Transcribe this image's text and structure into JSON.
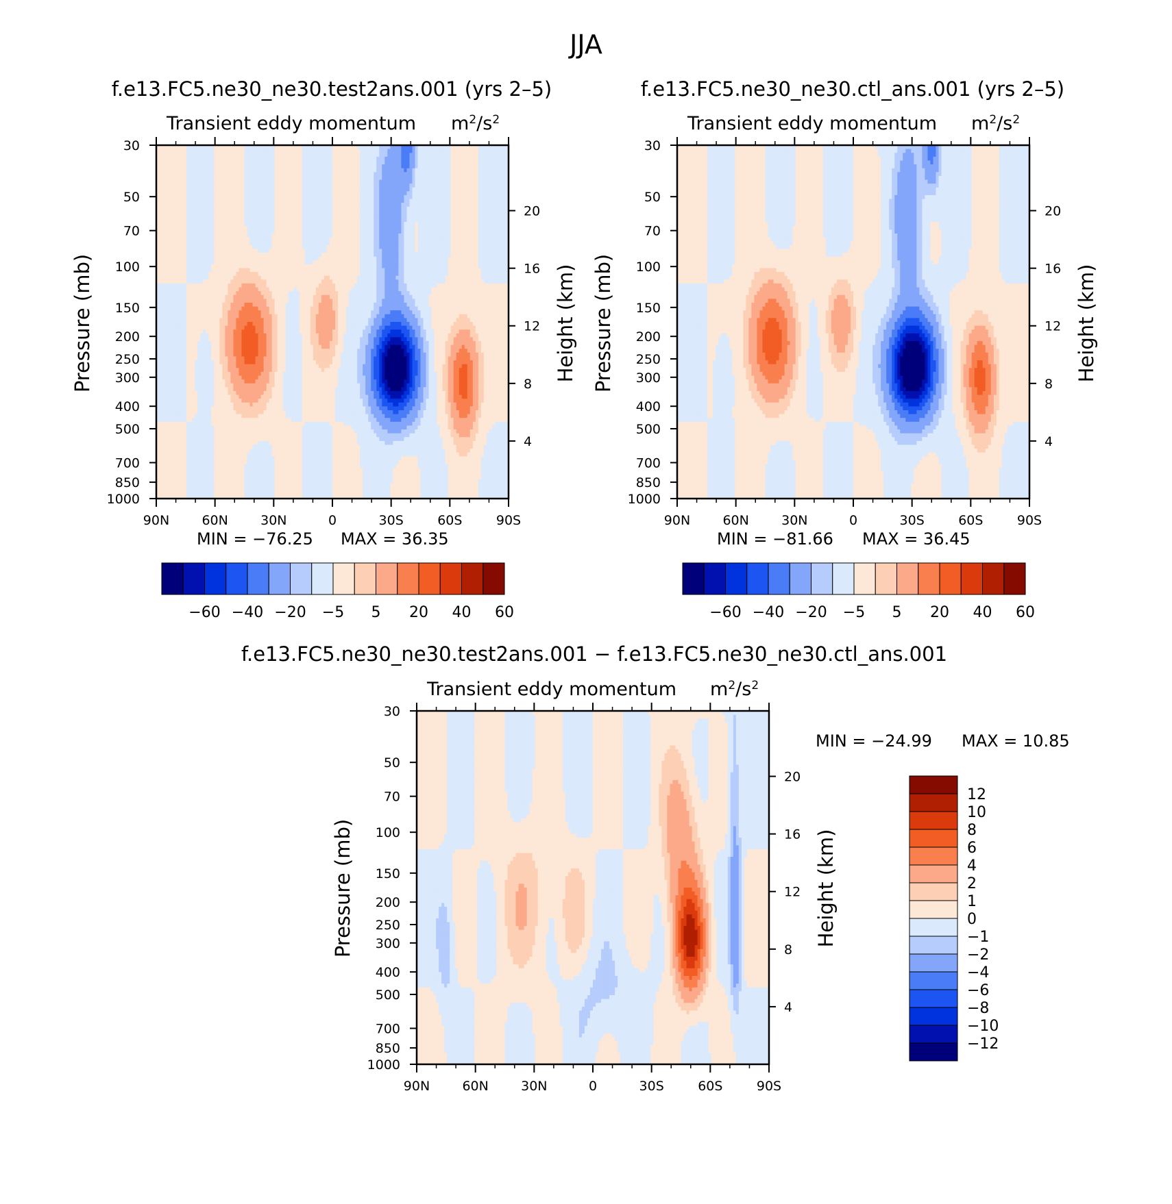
{
  "title": "JJA",
  "colors": {
    "neg_scale": [
      "#00007a",
      "#0011b0",
      "#0033dd",
      "#1c55f2",
      "#4a7cf7",
      "#83a6fa",
      "#b5ccfc",
      "#dbe9fd"
    ],
    "pos_scale": [
      "#fde7d6",
      "#fdcfb4",
      "#fca98a",
      "#f9804e",
      "#f25c25",
      "#da3a0c",
      "#b01f02",
      "#850a00"
    ],
    "axis": "#000000",
    "background": "#ffffff"
  },
  "chart_data": [
    {
      "id": "test",
      "type": "heatmap",
      "case_title": "f.e13.FC5.ne30_ne30.test2ans.001 (yrs 2–5)",
      "variable": "Transient eddy momentum",
      "units_base": "m",
      "units_sup": "2",
      "units_slash": "/s",
      "units_sup2": "2",
      "xlabel": "",
      "ylabel": "Pressure (mb)",
      "y2label": "Height (km)",
      "x_ticks": [
        "90N",
        "60N",
        "30N",
        "0",
        "30S",
        "60S",
        "90S"
      ],
      "x_range": [
        90,
        -90
      ],
      "y_ticks": [
        30,
        50,
        70,
        100,
        150,
        200,
        250,
        300,
        400,
        500,
        700,
        850,
        1000
      ],
      "y_range": [
        30,
        1000
      ],
      "y2_ticks": [
        4,
        8,
        12,
        16,
        20
      ],
      "min_text": "MIN = −76.25",
      "max_text": "MAX = 36.35",
      "min": -76.25,
      "max": 36.35,
      "levels": [
        -70,
        -60,
        -50,
        -40,
        -30,
        -20,
        -10,
        -5,
        0,
        5,
        10,
        20,
        30,
        40,
        50,
        60,
        70
      ],
      "colorbar_labels": [
        "−60",
        "−40",
        "−20",
        "−5",
        "5",
        "20",
        "40",
        "60"
      ],
      "features": [
        {
          "lat": -32,
          "p": 275,
          "value": -76,
          "wlat": 8,
          "wp": 0.32
        },
        {
          "lat": -30,
          "p": 60,
          "value": -18,
          "wlat": 5,
          "wp": 0.6
        },
        {
          "lat": -38,
          "p": 30,
          "value": -25,
          "wlat": 3,
          "wp": 0.3
        },
        {
          "lat": -67,
          "p": 310,
          "value": 36,
          "wlat": 5,
          "wp": 0.35
        },
        {
          "lat": 43,
          "p": 215,
          "value": 34,
          "wlat": 8,
          "wp": 0.38
        },
        {
          "lat": 3,
          "p": 170,
          "value": 14,
          "wlat": 5,
          "wp": 0.3
        },
        {
          "lat": 65,
          "p": 270,
          "value": -7,
          "wlat": 3,
          "wp": 0.25
        }
      ]
    },
    {
      "id": "ctl",
      "type": "heatmap",
      "case_title": "f.e13.FC5.ne30_ne30.ctl_ans.001 (yrs 2–5)",
      "variable": "Transient eddy momentum",
      "units_base": "m",
      "units_sup": "2",
      "units_slash": "/s",
      "units_sup2": "2",
      "xlabel": "",
      "ylabel": "Pressure (mb)",
      "y2label": "Height (km)",
      "x_ticks": [
        "90N",
        "60N",
        "30N",
        "0",
        "30S",
        "60S",
        "90S"
      ],
      "x_range": [
        90,
        -90
      ],
      "y_ticks": [
        30,
        50,
        70,
        100,
        150,
        200,
        250,
        300,
        400,
        500,
        700,
        850,
        1000
      ],
      "y_range": [
        30,
        1000
      ],
      "y2_ticks": [
        4,
        8,
        12,
        16,
        20
      ],
      "min_text": "MIN = −81.66",
      "max_text": "MAX = 36.45",
      "min": -81.66,
      "max": 36.45,
      "levels": [
        -70,
        -60,
        -50,
        -40,
        -30,
        -20,
        -10,
        -5,
        0,
        5,
        10,
        20,
        30,
        40,
        50,
        60,
        70
      ],
      "colorbar_labels": [
        "−60",
        "−40",
        "−20",
        "−5",
        "5",
        "20",
        "40",
        "60"
      ],
      "features": [
        {
          "lat": -30,
          "p": 270,
          "value": -81,
          "wlat": 8,
          "wp": 0.33
        },
        {
          "lat": -28,
          "p": 60,
          "value": -18,
          "wlat": 5,
          "wp": 0.6
        },
        {
          "lat": -40,
          "p": 30,
          "value": -25,
          "wlat": 3,
          "wp": 0.3
        },
        {
          "lat": -65,
          "p": 300,
          "value": 36,
          "wlat": 5,
          "wp": 0.35
        },
        {
          "lat": 42,
          "p": 210,
          "value": 35,
          "wlat": 8,
          "wp": 0.38
        },
        {
          "lat": 6,
          "p": 170,
          "value": 14,
          "wlat": 5,
          "wp": 0.3
        },
        {
          "lat": 66,
          "p": 280,
          "value": -7,
          "wlat": 3,
          "wp": 0.25
        }
      ]
    },
    {
      "id": "diff",
      "type": "heatmap",
      "case_title": "f.e13.FC5.ne30_ne30.test2ans.001 − f.e13.FC5.ne30_ne30.ctl_ans.001",
      "variable": "Transient eddy momentum",
      "units_base": "m",
      "units_sup": "2",
      "units_slash": "/s",
      "units_sup2": "2",
      "xlabel": "",
      "ylabel": "Pressure (mb)",
      "y2label": "Height (km)",
      "x_ticks": [
        "90N",
        "60N",
        "30N",
        "0",
        "30S",
        "60S",
        "90S"
      ],
      "x_range": [
        90,
        -90
      ],
      "y_ticks": [
        30,
        50,
        70,
        100,
        150,
        200,
        250,
        300,
        400,
        500,
        700,
        850,
        1000
      ],
      "y_range": [
        30,
        1000
      ],
      "y2_ticks": [
        4,
        8,
        12,
        16,
        20
      ],
      "min_text": "MIN = −24.99",
      "max_text": "MAX = 10.85",
      "min": -24.99,
      "max": 10.85,
      "levels": [
        -14,
        -12,
        -10,
        -8,
        -6,
        -4,
        -2,
        -1,
        0,
        1,
        2,
        4,
        6,
        8,
        10,
        12,
        14
      ],
      "colorbar_labels": [
        "12",
        "10",
        "8",
        "6",
        "4",
        "2",
        "1",
        "0",
        "−1",
        "−2",
        "−4",
        "−6",
        "−8",
        "−10",
        "−12"
      ],
      "features": [
        {
          "lat": -50,
          "p": 290,
          "value": 10.5,
          "wlat": 5,
          "wp": 0.35
        },
        {
          "lat": -45,
          "p": 120,
          "value": 3.5,
          "wlat": 6,
          "wp": 0.6
        },
        {
          "lat": -73,
          "p": 250,
          "value": -3.5,
          "wlat": 2,
          "wp": 0.6
        },
        {
          "lat": -72,
          "p": 60,
          "value": -1.6,
          "wlat": 2,
          "wp": 0.7
        },
        {
          "lat": 35,
          "p": 200,
          "value": 1.6,
          "wlat": 10,
          "wp": 0.5
        },
        {
          "lat": 10,
          "p": 220,
          "value": 1.3,
          "wlat": 5,
          "wp": 0.4
        },
        {
          "lat": 75,
          "p": 320,
          "value": -1.6,
          "wlat": 3,
          "wp": 0.4
        },
        {
          "lat": -5,
          "p": 500,
          "value": -1.2,
          "wlat": 12,
          "wp": 0.35
        }
      ]
    }
  ]
}
